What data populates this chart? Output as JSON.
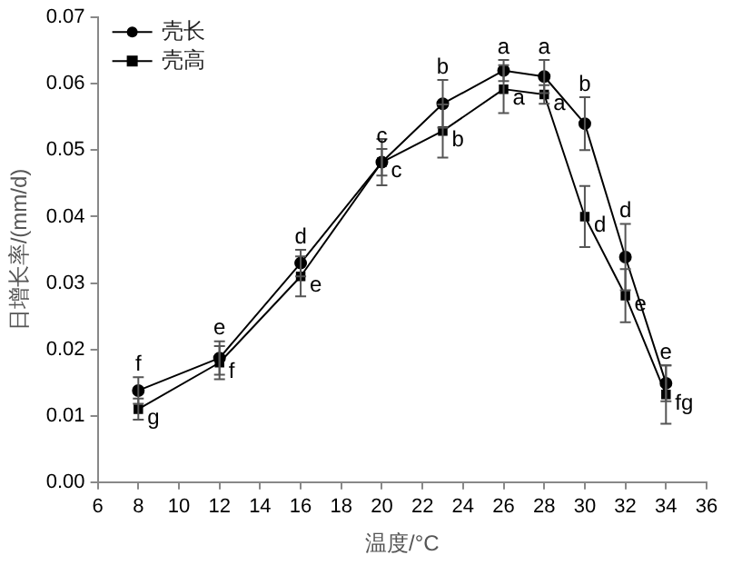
{
  "chart_data": {
    "type": "line",
    "xlabel": "温度/°C",
    "ylabel": "日增长率/(mm/d)",
    "x": [
      8,
      12,
      16,
      20,
      23,
      26,
      28,
      30,
      32,
      34
    ],
    "series": [
      {
        "name": "壳长",
        "color": "#000000",
        "marker": "circle",
        "values": [
          0.0138,
          0.0187,
          0.033,
          0.0482,
          0.057,
          0.062,
          0.0611,
          0.054,
          0.0339,
          0.0149
        ],
        "errors": [
          0.002,
          0.0025,
          0.002,
          0.002,
          0.0036,
          0.0016,
          0.0025,
          0.004,
          0.005,
          0.0027
        ]
      },
      {
        "name": "壳高",
        "color": "#000000",
        "marker": "square",
        "values": [
          0.011,
          0.018,
          0.031,
          0.0482,
          0.0529,
          0.0592,
          0.0584,
          0.04,
          0.0281,
          0.0132
        ],
        "errors": [
          0.0016,
          0.0025,
          0.003,
          0.0035,
          0.004,
          0.0036,
          0.0014,
          0.0046,
          0.004,
          0.0044
        ]
      }
    ],
    "xlim": [
      6,
      36
    ],
    "xticks": [
      6,
      8,
      10,
      12,
      14,
      16,
      18,
      20,
      22,
      24,
      26,
      28,
      30,
      32,
      34,
      36
    ],
    "ylim": [
      0,
      0.07
    ],
    "yticks": [
      {
        "value": 0,
        "label": "0.00"
      },
      0.01,
      0.02,
      0.03,
      0.04,
      0.05,
      0.06,
      0.07
    ],
    "legend": "top left",
    "annotations": [
      {
        "text": "f",
        "x": 8,
        "y": 0.0138
      },
      {
        "text": "g",
        "x": 8,
        "y": 0.011
      },
      {
        "text": "e",
        "x": 12,
        "y": 0.0187
      },
      {
        "text": "f",
        "x": 12,
        "y": 0.018
      },
      {
        "text": "d",
        "x": 16,
        "y": 0.033
      },
      {
        "text": "e",
        "x": 16,
        "y": 0.031
      },
      {
        "text": "c",
        "x": 20,
        "y": 0.0482
      },
      {
        "text": "c",
        "x": 20,
        "y": 0.0482
      },
      {
        "text": "b",
        "x": 23,
        "y": 0.057
      },
      {
        "text": "b",
        "x": 23,
        "y": 0.0529
      },
      {
        "text": "a",
        "x": 26,
        "y": 0.062
      },
      {
        "text": "a",
        "x": 26,
        "y": 0.0592
      },
      {
        "text": "a",
        "x": 28,
        "y": 0.0611
      },
      {
        "text": "a",
        "x": 28,
        "y": 0.0584
      },
      {
        "text": "b",
        "x": 30,
        "y": 0.054
      },
      {
        "text": "d",
        "x": 30,
        "y": 0.04
      },
      {
        "text": "d",
        "x": 32,
        "y": 0.0339
      },
      {
        "text": "e",
        "x": 32,
        "y": 0.0281
      },
      {
        "text": "e",
        "x": 34,
        "y": 0.0149
      },
      {
        "text": "fg",
        "x": 34,
        "y": 0.0132
      }
    ]
  }
}
